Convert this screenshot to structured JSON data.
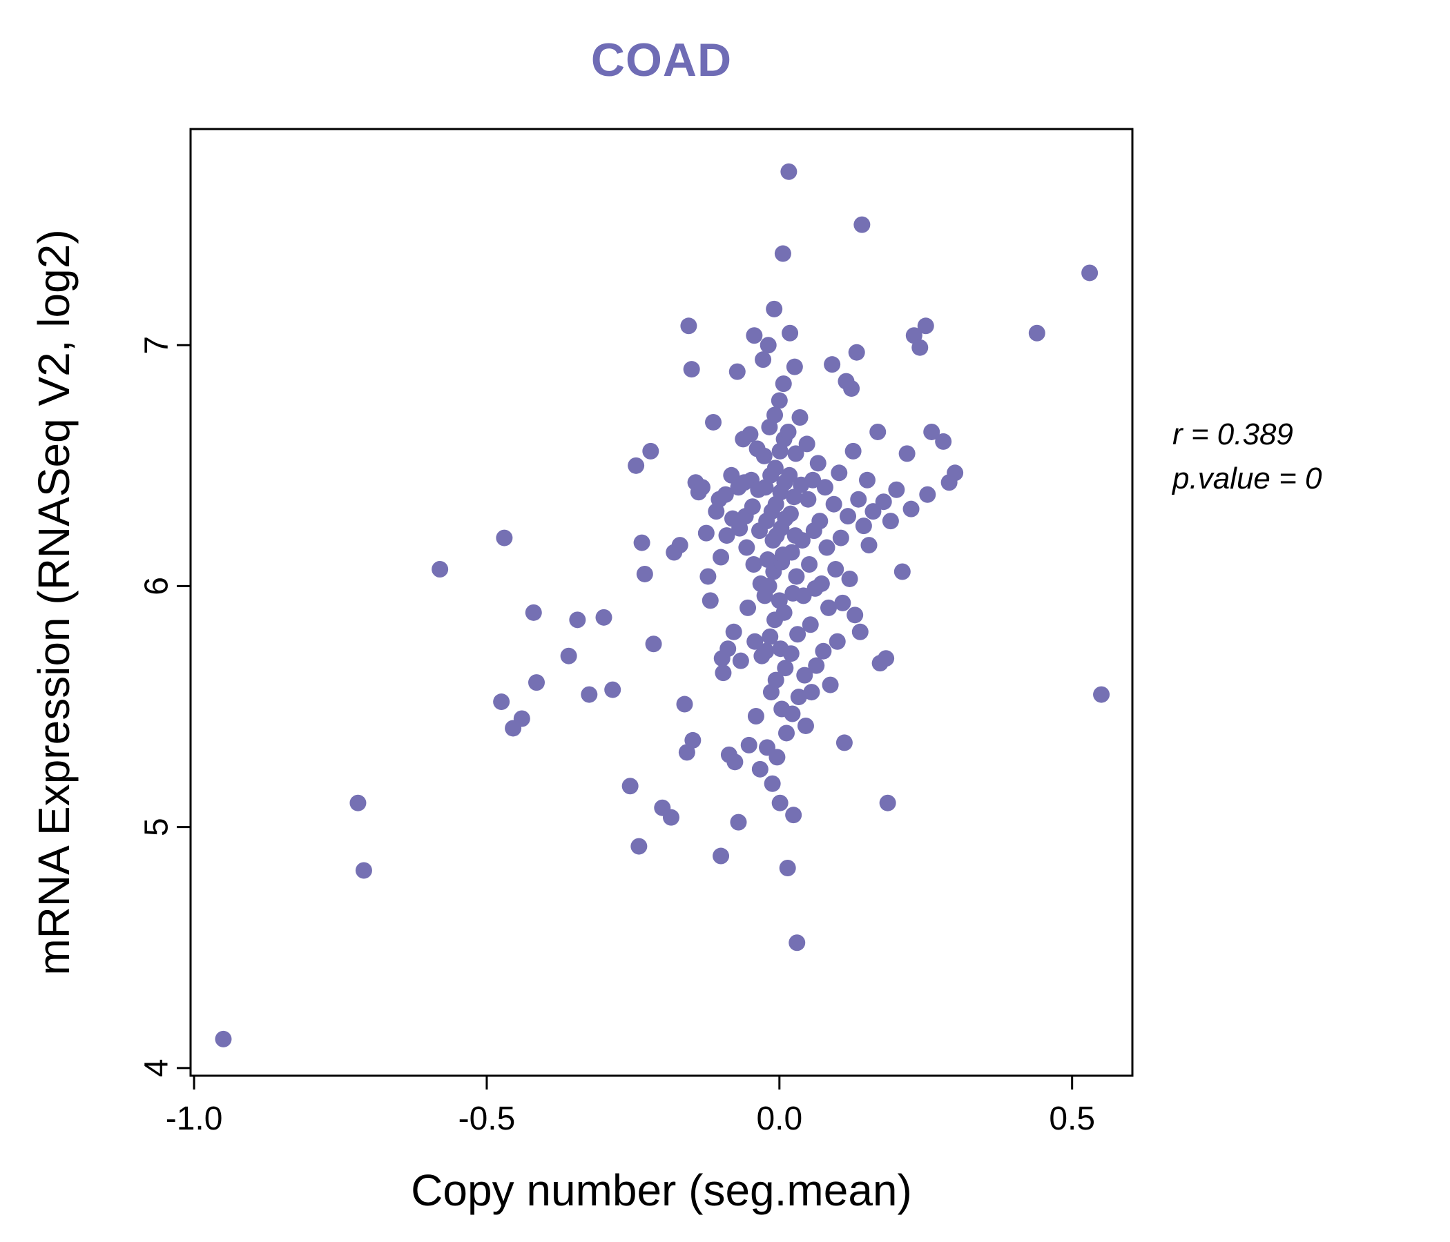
{
  "title": "COAD",
  "annotation": {
    "line1": "r = 0.389",
    "line2": "p.value = 0"
  },
  "chart_data": {
    "type": "scatter",
    "title": "COAD",
    "xlabel": "Copy number (seg.mean)",
    "ylabel": "mRNA Expression (RNASeq V2, log2)",
    "xlim": [
      -1.006,
      0.603
    ],
    "ylim": [
      3.968,
      7.897
    ],
    "xtick_values": [
      -1.0,
      -0.5,
      0.0,
      0.5
    ],
    "xtick_labels": [
      "-1.0",
      "-0.5",
      "0.0",
      "0.5"
    ],
    "ytick_values": [
      4,
      5,
      6,
      7
    ],
    "ytick_labels": [
      "4",
      "5",
      "6",
      "7"
    ],
    "grid": false,
    "legend": "none",
    "point_color": "#7570b3",
    "title_color": "#6f6cb5",
    "correlation_r": 0.389,
    "p_value": 0,
    "points": [
      [
        -0.95,
        4.12
      ],
      [
        -0.72,
        5.1
      ],
      [
        -0.71,
        4.82
      ],
      [
        -0.58,
        6.07
      ],
      [
        -0.47,
        6.2
      ],
      [
        -0.475,
        5.52
      ],
      [
        -0.455,
        5.41
      ],
      [
        -0.44,
        5.45
      ],
      [
        -0.42,
        5.89
      ],
      [
        -0.415,
        5.6
      ],
      [
        -0.36,
        5.71
      ],
      [
        -0.345,
        5.86
      ],
      [
        -0.325,
        5.55
      ],
      [
        -0.3,
        5.87
      ],
      [
        -0.285,
        5.57
      ],
      [
        -0.245,
        6.5
      ],
      [
        -0.235,
        6.18
      ],
      [
        -0.23,
        6.05
      ],
      [
        -0.22,
        6.56
      ],
      [
        -0.215,
        5.76
      ],
      [
        -0.255,
        5.17
      ],
      [
        -0.24,
        4.92
      ],
      [
        -0.2,
        5.08
      ],
      [
        -0.185,
        5.04
      ],
      [
        -0.18,
        6.14
      ],
      [
        -0.17,
        6.17
      ],
      [
        -0.155,
        7.08
      ],
      [
        -0.15,
        6.9
      ],
      [
        -0.162,
        5.51
      ],
      [
        -0.158,
        5.31
      ],
      [
        -0.148,
        5.36
      ],
      [
        -0.143,
        6.43
      ],
      [
        -0.138,
        6.39
      ],
      [
        -0.132,
        6.41
      ],
      [
        -0.125,
        6.22
      ],
      [
        -0.122,
        6.04
      ],
      [
        -0.118,
        5.94
      ],
      [
        -0.113,
        6.68
      ],
      [
        -0.108,
        6.31
      ],
      [
        -0.103,
        6.36
      ],
      [
        -0.1,
        6.12
      ],
      [
        -0.098,
        5.7
      ],
      [
        -0.096,
        5.64
      ],
      [
        -0.1,
        4.88
      ],
      [
        -0.092,
        6.38
      ],
      [
        -0.09,
        6.21
      ],
      [
        -0.088,
        5.74
      ],
      [
        -0.086,
        5.3
      ],
      [
        -0.082,
        6.46
      ],
      [
        -0.08,
        6.28
      ],
      [
        -0.078,
        5.81
      ],
      [
        -0.076,
        5.27
      ],
      [
        -0.072,
        6.89
      ],
      [
        -0.07,
        6.41
      ],
      [
        -0.068,
        6.24
      ],
      [
        -0.066,
        5.69
      ],
      [
        -0.07,
        5.02
      ],
      [
        -0.062,
        6.61
      ],
      [
        -0.06,
        6.43
      ],
      [
        -0.058,
        6.29
      ],
      [
        -0.056,
        6.16
      ],
      [
        -0.054,
        5.91
      ],
      [
        -0.052,
        5.34
      ],
      [
        -0.05,
        6.63
      ],
      [
        -0.048,
        6.44
      ],
      [
        -0.046,
        6.33
      ],
      [
        -0.044,
        6.09
      ],
      [
        -0.042,
        5.77
      ],
      [
        -0.04,
        5.46
      ],
      [
        -0.043,
        7.04
      ],
      [
        -0.038,
        6.57
      ],
      [
        -0.036,
        6.4
      ],
      [
        -0.034,
        6.23
      ],
      [
        -0.032,
        6.01
      ],
      [
        -0.03,
        5.71
      ],
      [
        -0.033,
        5.24
      ],
      [
        -0.028,
        6.94
      ],
      [
        -0.026,
        6.54
      ],
      [
        -0.024,
        6.41
      ],
      [
        -0.022,
        6.27
      ],
      [
        -0.02,
        6.11
      ],
      [
        -0.025,
        5.96
      ],
      [
        -0.023,
        5.73
      ],
      [
        -0.021,
        5.33
      ],
      [
        -0.019,
        7.0
      ],
      [
        -0.017,
        6.66
      ],
      [
        -0.015,
        6.46
      ],
      [
        -0.013,
        6.31
      ],
      [
        -0.011,
        6.19
      ],
      [
        -0.018,
        6.0
      ],
      [
        -0.016,
        5.79
      ],
      [
        -0.014,
        5.56
      ],
      [
        -0.012,
        5.18
      ],
      [
        -0.009,
        7.15
      ],
      [
        -0.008,
        6.71
      ],
      [
        -0.007,
        6.49
      ],
      [
        -0.006,
        6.34
      ],
      [
        -0.005,
        6.21
      ],
      [
        -0.01,
        6.06
      ],
      [
        -0.008,
        5.86
      ],
      [
        -0.006,
        5.61
      ],
      [
        -0.004,
        5.29
      ],
      [
        0.0,
        6.77
      ],
      [
        0.001,
        6.56
      ],
      [
        0.002,
        6.39
      ],
      [
        0.003,
        6.24
      ],
      [
        0.004,
        6.1
      ],
      [
        0.0,
        5.94
      ],
      [
        0.002,
        5.74
      ],
      [
        0.004,
        5.49
      ],
      [
        0.001,
        5.1
      ],
      [
        0.006,
        7.38
      ],
      [
        0.007,
        6.84
      ],
      [
        0.008,
        6.61
      ],
      [
        0.009,
        6.43
      ],
      [
        0.01,
        6.28
      ],
      [
        0.006,
        6.13
      ],
      [
        0.008,
        5.89
      ],
      [
        0.01,
        5.66
      ],
      [
        0.012,
        5.39
      ],
      [
        0.014,
        4.83
      ],
      [
        0.016,
        7.72
      ],
      [
        0.018,
        7.05
      ],
      [
        0.015,
        6.64
      ],
      [
        0.017,
        6.46
      ],
      [
        0.019,
        6.3
      ],
      [
        0.021,
        6.14
      ],
      [
        0.023,
        5.97
      ],
      [
        0.02,
        5.72
      ],
      [
        0.022,
        5.47
      ],
      [
        0.024,
        5.05
      ],
      [
        0.026,
        6.91
      ],
      [
        0.028,
        6.55
      ],
      [
        0.025,
        6.37
      ],
      [
        0.027,
        6.21
      ],
      [
        0.029,
        6.04
      ],
      [
        0.031,
        5.8
      ],
      [
        0.033,
        5.54
      ],
      [
        0.03,
        4.52
      ],
      [
        0.035,
        6.7
      ],
      [
        0.037,
        6.42
      ],
      [
        0.039,
        6.19
      ],
      [
        0.041,
        5.96
      ],
      [
        0.043,
        5.63
      ],
      [
        0.045,
        5.42
      ],
      [
        0.047,
        6.59
      ],
      [
        0.049,
        6.36
      ],
      [
        0.051,
        6.09
      ],
      [
        0.053,
        5.84
      ],
      [
        0.055,
        5.56
      ],
      [
        0.057,
        6.44
      ],
      [
        0.059,
        6.23
      ],
      [
        0.061,
        5.99
      ],
      [
        0.063,
        5.67
      ],
      [
        0.066,
        6.51
      ],
      [
        0.069,
        6.27
      ],
      [
        0.072,
        6.01
      ],
      [
        0.075,
        5.73
      ],
      [
        0.078,
        6.41
      ],
      [
        0.081,
        6.16
      ],
      [
        0.084,
        5.91
      ],
      [
        0.087,
        5.59
      ],
      [
        0.09,
        6.92
      ],
      [
        0.093,
        6.34
      ],
      [
        0.096,
        6.07
      ],
      [
        0.099,
        5.77
      ],
      [
        0.102,
        6.47
      ],
      [
        0.105,
        6.2
      ],
      [
        0.108,
        5.93
      ],
      [
        0.111,
        5.35
      ],
      [
        0.114,
        6.85
      ],
      [
        0.117,
        6.29
      ],
      [
        0.12,
        6.03
      ],
      [
        0.123,
        6.82
      ],
      [
        0.126,
        6.56
      ],
      [
        0.129,
        5.88
      ],
      [
        0.132,
        6.97
      ],
      [
        0.135,
        6.36
      ],
      [
        0.138,
        5.81
      ],
      [
        0.141,
        7.5
      ],
      [
        0.144,
        6.25
      ],
      [
        0.15,
        6.44
      ],
      [
        0.153,
        6.17
      ],
      [
        0.16,
        6.31
      ],
      [
        0.168,
        6.64
      ],
      [
        0.172,
        5.68
      ],
      [
        0.178,
        6.35
      ],
      [
        0.182,
        5.7
      ],
      [
        0.185,
        5.1
      ],
      [
        0.19,
        6.27
      ],
      [
        0.2,
        6.4
      ],
      [
        0.21,
        6.06
      ],
      [
        0.218,
        6.55
      ],
      [
        0.225,
        6.32
      ],
      [
        0.23,
        7.04
      ],
      [
        0.24,
        6.99
      ],
      [
        0.25,
        7.08
      ],
      [
        0.253,
        6.38
      ],
      [
        0.26,
        6.64
      ],
      [
        0.28,
        6.6
      ],
      [
        0.29,
        6.43
      ],
      [
        0.3,
        6.47
      ],
      [
        0.44,
        7.05
      ],
      [
        0.53,
        7.3
      ],
      [
        0.55,
        5.55
      ]
    ]
  }
}
